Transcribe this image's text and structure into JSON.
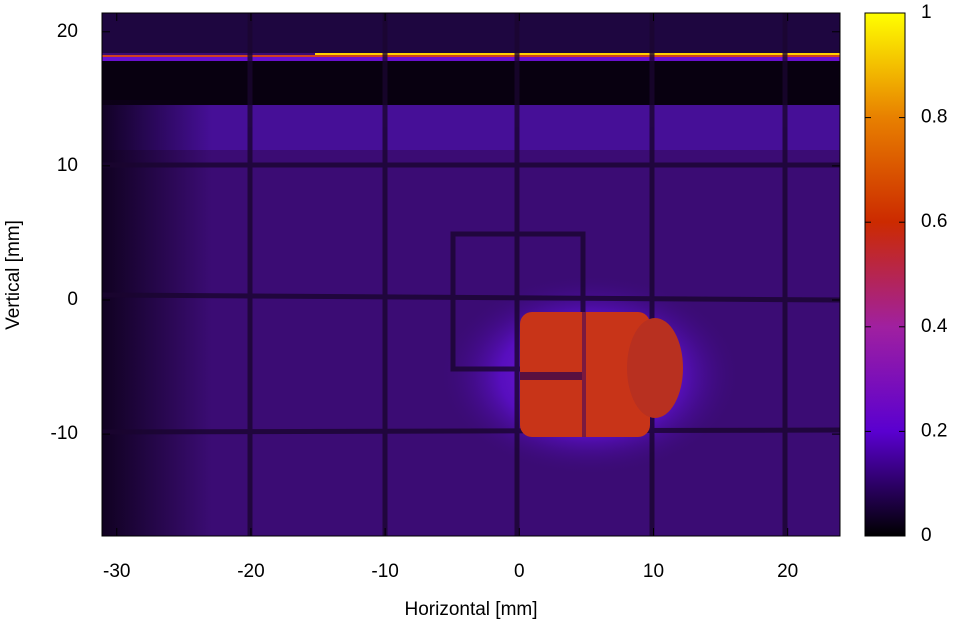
{
  "chart_data": {
    "type": "heatmap",
    "xlabel": "Horizontal [mm]",
    "ylabel": "Vertical [mm]",
    "xlim": [
      -31.1,
      23.9
    ],
    "ylim": [
      -17.6,
      21.4
    ],
    "xticks": [
      -30,
      -20,
      -10,
      0,
      10,
      20
    ],
    "yticks": [
      -10,
      0,
      10,
      20
    ],
    "colorbar": {
      "lim": [
        0,
        1
      ],
      "ticks": [
        0,
        0.2,
        0.4,
        0.6,
        0.8,
        1
      ],
      "colors": [
        "#000000",
        "#5a00d0",
        "#a020a0",
        "#cc2a00",
        "#e88000",
        "#ffff00"
      ]
    }
  }
}
